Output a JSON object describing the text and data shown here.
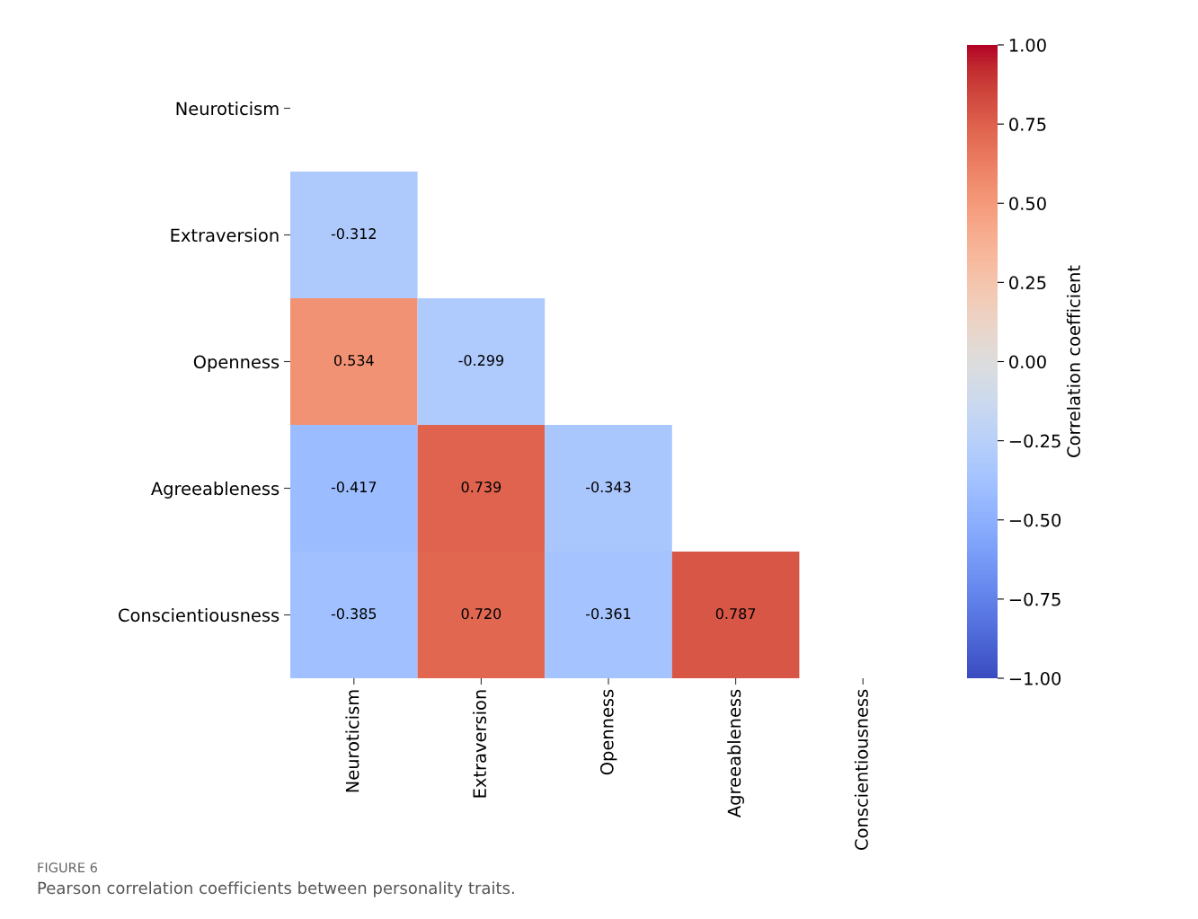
{
  "chart_data": {
    "type": "heatmap",
    "categories": [
      "Neuroticism",
      "Extraversion",
      "Openness",
      "Agreeableness",
      "Conscientiousness"
    ],
    "y_categories": [
      "Neuroticism",
      "Extraversion",
      "Openness",
      "Agreeableness",
      "Conscientiousness"
    ],
    "cells": [
      [
        null,
        null,
        null,
        null,
        null
      ],
      [
        -0.312,
        null,
        null,
        null,
        null
      ],
      [
        0.534,
        -0.299,
        null,
        null,
        null
      ],
      [
        -0.417,
        0.739,
        -0.343,
        null,
        null
      ],
      [
        -0.385,
        0.72,
        -0.361,
        0.787,
        null
      ]
    ],
    "cell_labels": [
      [
        null,
        null,
        null,
        null,
        null
      ],
      [
        "-0.312",
        null,
        null,
        null,
        null
      ],
      [
        "0.534",
        "-0.299",
        null,
        null,
        null
      ],
      [
        "-0.417",
        "0.739",
        "-0.343",
        null,
        null
      ],
      [
        "-0.385",
        "0.720",
        "-0.361",
        "0.787",
        null
      ]
    ],
    "clim": [
      -1,
      1
    ],
    "cticks": [
      {
        "value": 1,
        "label": "1.00"
      },
      {
        "value": 0.75,
        "label": "0.75"
      },
      {
        "value": 0.5,
        "label": "0.50"
      },
      {
        "value": 0.25,
        "label": "0.25"
      },
      {
        "value": 0,
        "label": "0.00"
      },
      {
        "value": -0.25,
        "label": "−0.25"
      },
      {
        "value": -0.5,
        "label": "−0.50"
      },
      {
        "value": -0.75,
        "label": "−0.75"
      },
      {
        "value": -1,
        "label": "−1.00"
      }
    ],
    "clabel": "Correlation coefficient",
    "annotations": [
      "FIGURE 6",
      "Pearson correlation coefficients between personality traits."
    ]
  }
}
